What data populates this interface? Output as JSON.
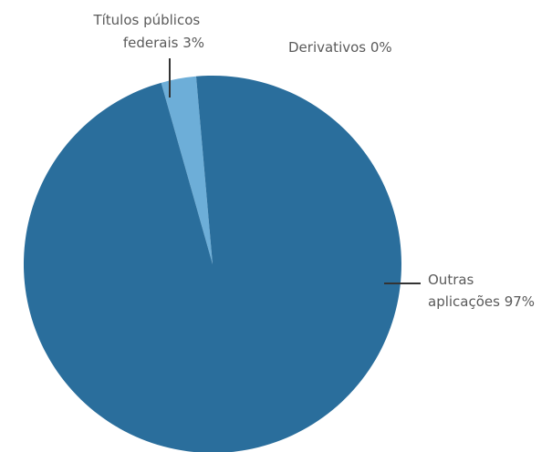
{
  "chart_data": {
    "type": "pie",
    "title": "",
    "slices": [
      {
        "label": "Outras aplicações",
        "value": 97,
        "display": "97%",
        "color": "#2a6e9c"
      },
      {
        "label": "Títulos públicos federais",
        "value": 3,
        "display": "3%",
        "color": "#6daed8"
      },
      {
        "label": "Derivativos",
        "value": 0,
        "display": "0%",
        "color": "#2a6e9c"
      }
    ],
    "annotations": {
      "titulos": [
        "Títulos públicos",
        "federais 3%"
      ],
      "derivativos": [
        "Derivativos 0%"
      ],
      "outras": [
        "Outras",
        "aplicações 97%"
      ]
    },
    "line_color": "#333333"
  }
}
